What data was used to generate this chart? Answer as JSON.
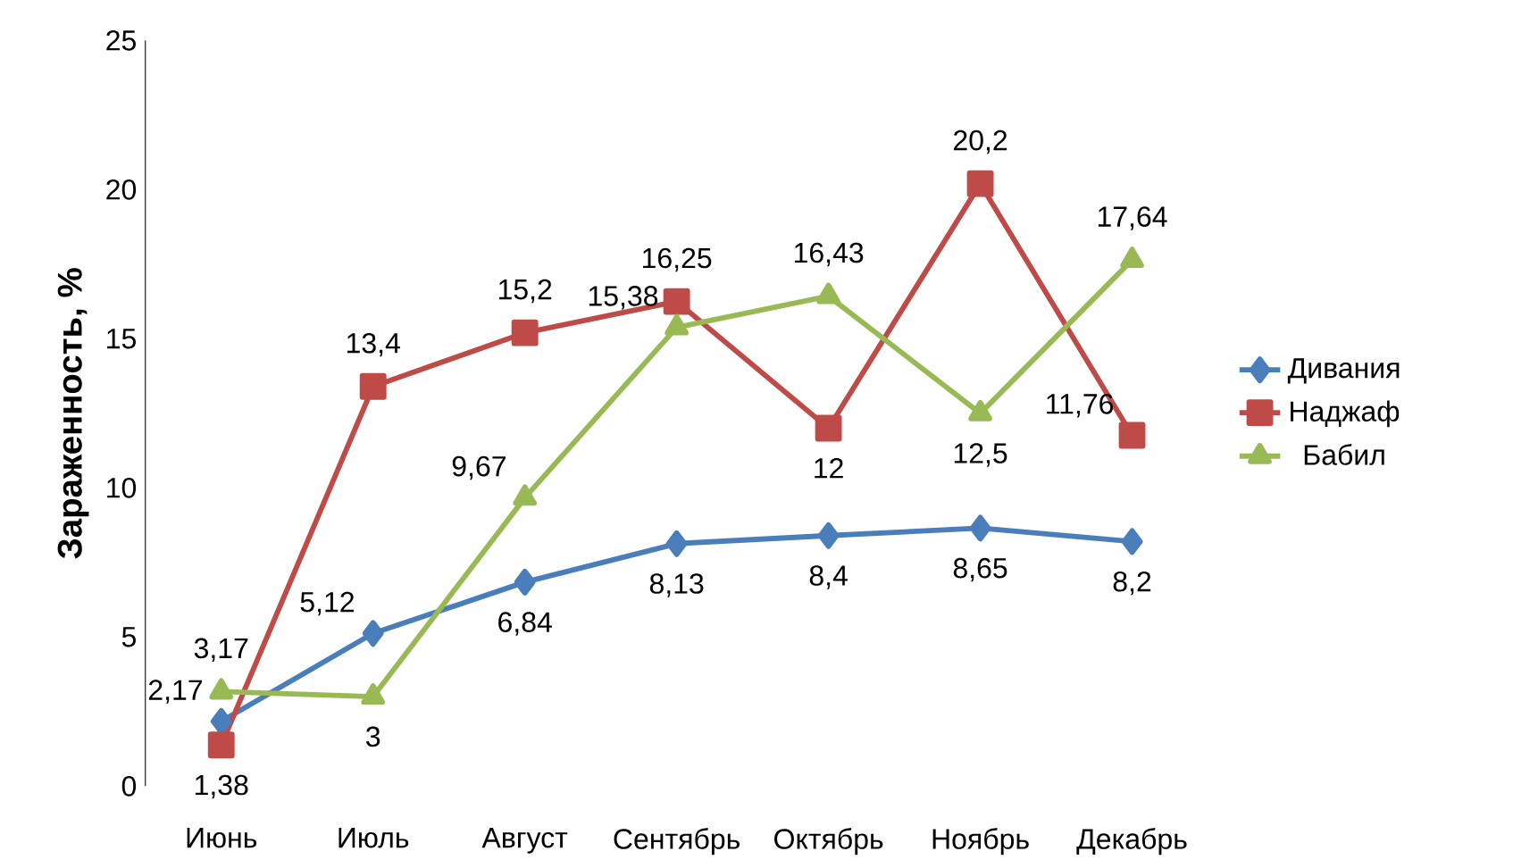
{
  "chart_data": {
    "type": "line",
    "ylabel": "Зараженность, %",
    "categories": [
      "Июнь",
      "Июль",
      "Август",
      "Сентябрь",
      "Октябрь",
      "Ноябрь",
      "Декабрь"
    ],
    "ylim": [
      0,
      25
    ],
    "yticks": [
      0,
      5,
      10,
      15,
      20,
      25
    ],
    "legend": "right",
    "grid": false,
    "line_style": "solid",
    "series": [
      {
        "name": "Дивания",
        "color": "#4a7ebb",
        "marker": "diamond",
        "values": [
          2.17,
          5.12,
          6.84,
          8.13,
          8.4,
          8.65,
          8.2
        ],
        "value_labels": [
          "2,17",
          "5,12",
          "6,84",
          "8,13",
          "8,4",
          "8,65",
          "8,2"
        ]
      },
      {
        "name": "Наджаф",
        "color": "#be4b48",
        "marker": "square",
        "values": [
          1.38,
          13.4,
          15.2,
          16.25,
          12,
          20.2,
          11.76
        ],
        "value_labels": [
          "1,38",
          "13,4",
          "15,2",
          "16,25",
          "12",
          "20,2",
          "11,76"
        ]
      },
      {
        "name": "Бабил",
        "color": "#98b954",
        "marker": "triangle",
        "values": [
          3.17,
          3,
          9.67,
          15.38,
          16.43,
          12.5,
          17.64
        ],
        "value_labels": [
          "3,17",
          "3",
          "9,67",
          "15,38",
          "16,43",
          "12,5",
          "17,64"
        ]
      }
    ]
  }
}
